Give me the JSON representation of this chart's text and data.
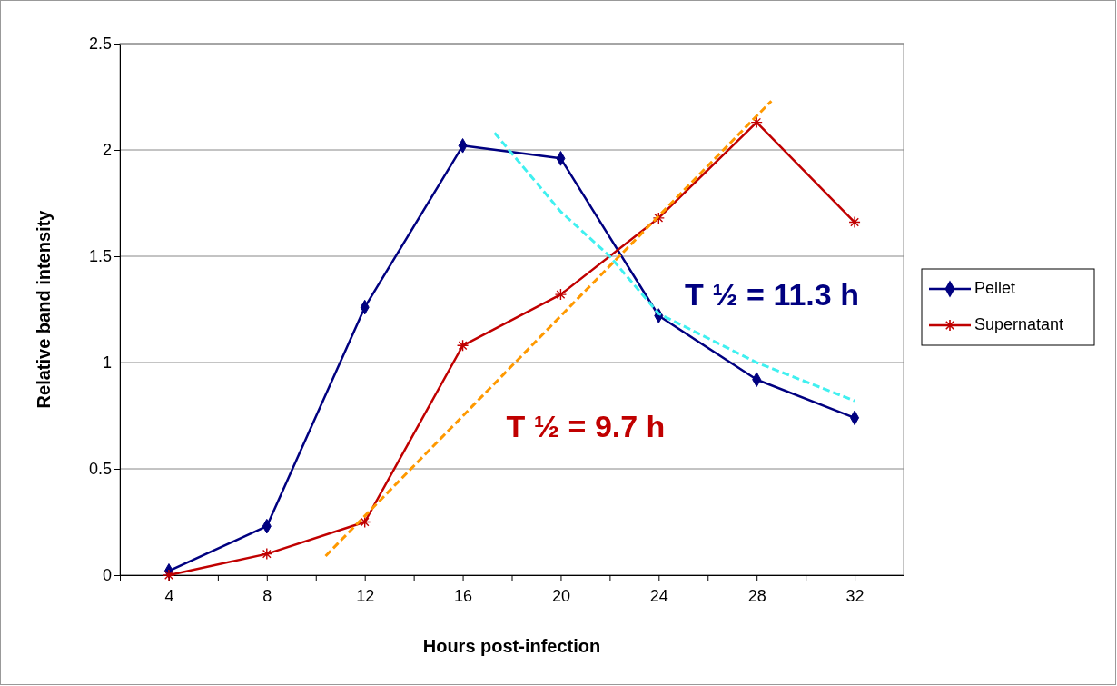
{
  "chart_data": {
    "type": "line",
    "xlabel": "Hours post-infection",
    "ylabel": "Relative band intensity",
    "xlim": [
      2,
      34
    ],
    "xticks": [
      {
        "value": 2,
        "label": null
      },
      4,
      {
        "value": 6,
        "label": null
      },
      8,
      {
        "value": 10,
        "label": null
      },
      12,
      {
        "value": 14,
        "label": null
      },
      16,
      {
        "value": 18,
        "label": null
      },
      20,
      {
        "value": 22,
        "label": null
      },
      24,
      {
        "value": 26,
        "label": null
      },
      28,
      {
        "value": 30,
        "label": null
      },
      32,
      {
        "value": 34,
        "label": null
      }
    ],
    "ylim": [
      0,
      2.5
    ],
    "yticks": [
      0,
      0.5,
      1,
      1.5,
      2,
      2.5
    ],
    "grid": "y",
    "legend": "right",
    "series": [
      {
        "name": "Pellet",
        "color": "#000080",
        "marker": "diamond",
        "line_style": "solid",
        "x": [
          4,
          8,
          12,
          16,
          20,
          24,
          28,
          32
        ],
        "values": [
          0.02,
          0.23,
          1.26,
          2.02,
          1.96,
          1.22,
          0.92,
          0.74
        ]
      },
      {
        "name": "Supernatant",
        "color": "#c00000",
        "marker": "cross",
        "line_style": "solid",
        "x": [
          4,
          8,
          12,
          16,
          20,
          24,
          28,
          32
        ],
        "values": [
          0,
          0.1,
          0.25,
          1.08,
          1.32,
          1.68,
          2.13,
          1.66
        ]
      },
      {
        "color": "#40f0f0",
        "marker": "none",
        "line_style": "dashed",
        "x": [
          17.3,
          20,
          22,
          24,
          28,
          32
        ],
        "values": [
          2.08,
          1.71,
          1.5,
          1.23,
          1.0,
          0.82
        ]
      },
      {
        "color": "#ff9900",
        "marker": "none",
        "line_style": "dashed",
        "x": [
          10.4,
          28.6
        ],
        "values": [
          0.09,
          2.23
        ]
      }
    ],
    "annotations": [
      "T ½ = 11.3 h",
      "T ½ = 9.7 h"
    ]
  }
}
